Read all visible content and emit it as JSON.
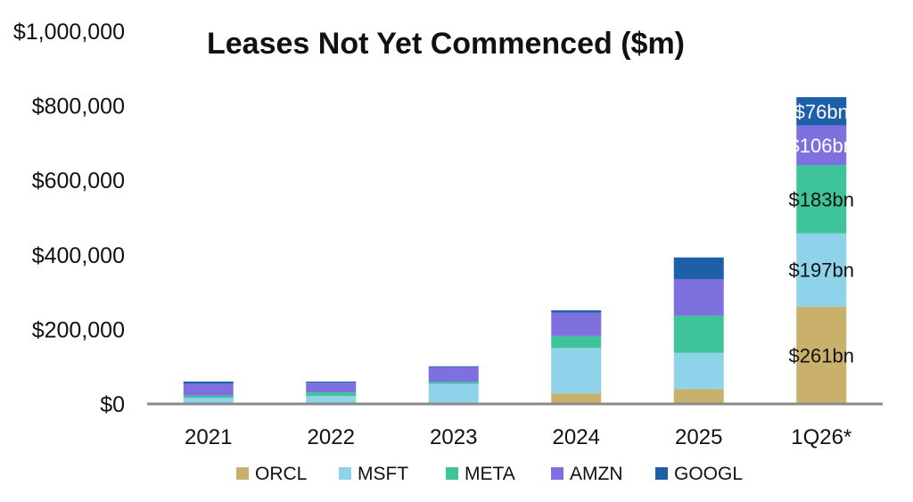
{
  "chart_data": {
    "type": "bar",
    "stacked": true,
    "title": "Leases Not Yet Commenced ($m)",
    "xlabel": "",
    "ylabel": "",
    "categories": [
      "2021",
      "2022",
      "2023",
      "2024",
      "2025",
      "1Q26*"
    ],
    "ylim": [
      0,
      1000000
    ],
    "yticks": [
      {
        "value": 0,
        "label": "$0"
      },
      {
        "value": 200000,
        "label": "$200,000"
      },
      {
        "value": 400000,
        "label": "$400,000"
      },
      {
        "value": 600000,
        "label": "$600,000"
      },
      {
        "value": 800000,
        "label": "$800,000"
      },
      {
        "value": 1000000,
        "label": "$1,000,000"
      }
    ],
    "grid": false,
    "legend": "bottom",
    "series": [
      {
        "name": "ORCL",
        "color": "#c9b06b",
        "values": [
          2000,
          3000,
          4000,
          28000,
          40000,
          261000
        ]
      },
      {
        "name": "MSFT",
        "color": "#8fd3ea",
        "values": [
          14000,
          18000,
          50000,
          122000,
          97000,
          197000
        ]
      },
      {
        "name": "META",
        "color": "#3fc39a",
        "values": [
          6000,
          10000,
          5000,
          32000,
          100000,
          183000
        ]
      },
      {
        "name": "AMZN",
        "color": "#7f70e0",
        "values": [
          33000,
          26000,
          40000,
          63000,
          98000,
          106000
        ]
      },
      {
        "name": "GOOGL",
        "color": "#1d5fa8",
        "values": [
          5000,
          3000,
          2000,
          6000,
          58000,
          76000
        ]
      }
    ],
    "annotations": [
      {
        "category": "1Q26*",
        "series": "ORCL",
        "text": "$261bn",
        "color": "#111111"
      },
      {
        "category": "1Q26*",
        "series": "MSFT",
        "text": "$197bn",
        "color": "#111111"
      },
      {
        "category": "1Q26*",
        "series": "META",
        "text": "$183bn",
        "color": "#111111"
      },
      {
        "category": "1Q26*",
        "series": "AMZN",
        "text": "$106bn",
        "color": "#ffffff"
      },
      {
        "category": "1Q26*",
        "series": "GOOGL",
        "text": "$76bn",
        "color": "#ffffff"
      }
    ]
  }
}
